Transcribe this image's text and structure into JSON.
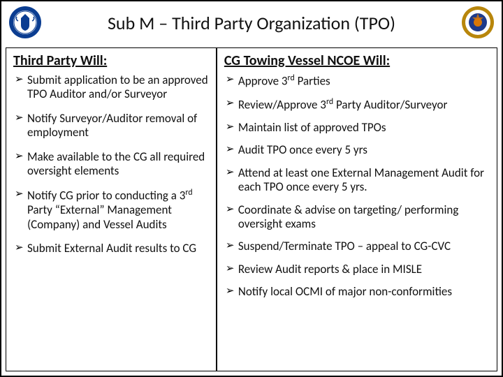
{
  "title": "Sub M – Third Party Organization (TPO)",
  "left": {
    "heading": "Third Party Will:",
    "items": [
      "Submit application to be an approved TPO Auditor and/or Surveyor",
      "Notify Surveyor/Auditor removal of employment",
      "Make available to the CG all required oversight elements",
      "Notify CG prior to conducting a 3<sup>rd</sup> Party “External” Management (Company) and Vessel Audits",
      "Submit External Audit results to CG"
    ]
  },
  "right": {
    "heading": "CG Towing Vessel NCOE Will:",
    "items": [
      " Approve 3<sup>rd</sup> Parties",
      " Review/Approve 3<sup>rd</sup> Party Auditor/Surveyor",
      "Maintain list of approved TPOs",
      " Audit TPO once every 5 yrs",
      "Attend at least one External Management Audit for each TPO once every 5 yrs.",
      "Coordinate & advise on targeting/ performing oversight exams",
      " Suspend/Terminate TPO – appeal to CG-CVC",
      "Review Audit reports & place in MISLE",
      "Notify local OCMI of major non-conformities"
    ]
  },
  "seals": {
    "left_outer": "#0b3d91",
    "left_inner": "#ffffff",
    "left_ring": "#0b3d91",
    "left_eagle": "#0b3d91",
    "right_outer": "#b8860b",
    "right_center": "#1e3a8a",
    "right_accent": "#d97706"
  }
}
